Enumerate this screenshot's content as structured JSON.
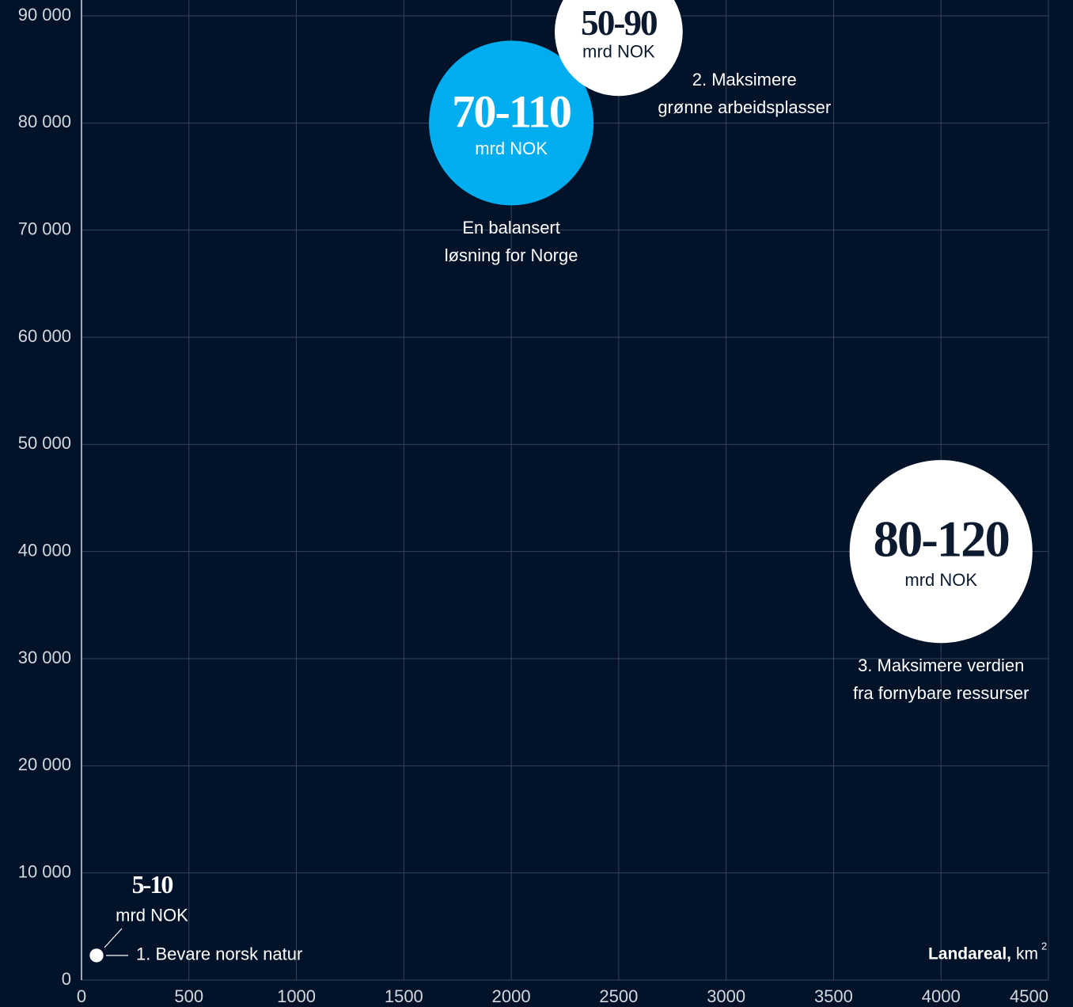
{
  "chart_data": {
    "type": "bubble",
    "xlim": [
      0,
      4500
    ],
    "xticks": [
      0,
      500,
      1000,
      1500,
      2000,
      2500,
      3000,
      3500,
      4000,
      4500
    ],
    "ylim": [
      0,
      90000
    ],
    "yticks": [
      0,
      {
        "value": 10000,
        "label": "10 000"
      },
      {
        "value": 20000,
        "label": "20 000"
      },
      {
        "value": 30000,
        "label": "30 000"
      },
      {
        "value": 40000,
        "label": "40 000"
      },
      {
        "value": 50000,
        "label": "50 000"
      },
      {
        "value": 60000,
        "label": "60 000"
      },
      {
        "value": 70000,
        "label": "70 000"
      },
      {
        "value": 80000,
        "label": "80 000"
      },
      {
        "value": 90000,
        "label": "90 000"
      }
    ],
    "grid": true,
    "x_label": "Landareal,",
    "x_unit": "km",
    "x_unit_superscript": "2",
    "points": [
      {
        "x": 70,
        "y": 2300,
        "low": 5,
        "high": 10,
        "value_label": "5-10",
        "unit": "mrd NOK",
        "name": [
          "1. Bevare norsk natur"
        ],
        "color": "#ffffff",
        "label_position": "right"
      },
      {
        "x": 2000,
        "y": 80000,
        "low": 70,
        "high": 110,
        "value_label": "70-110",
        "unit": "mrd NOK",
        "name": [
          "En balansert",
          "løsning for Norge"
        ],
        "color": "#00aeef",
        "label_position": "below"
      },
      {
        "x": 2500,
        "y": 88500,
        "low": 50,
        "high": 90,
        "value_label": "50-90",
        "unit": "mrd NOK",
        "name": [
          "2. Maksimere",
          "grønne arbeidsplasser"
        ],
        "color": "#ffffff",
        "label_position": "right-below"
      },
      {
        "x": 4000,
        "y": 40000,
        "low": 80,
        "high": 120,
        "value_label": "80-120",
        "unit": "mrd NOK",
        "name": [
          "3. Maksimere verdien",
          "fra fornybare ressurser"
        ],
        "color": "#ffffff",
        "label_position": "below"
      }
    ]
  }
}
